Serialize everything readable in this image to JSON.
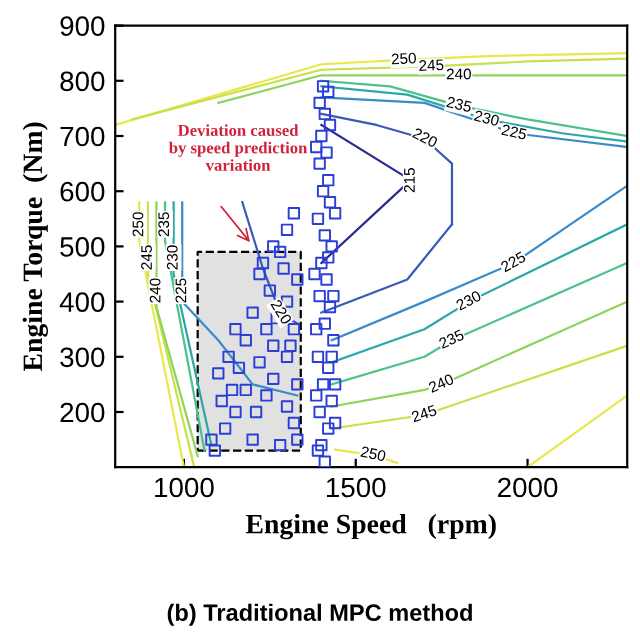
{
  "chart_data": {
    "type": "line",
    "title": "(b) Traditional MPC method",
    "xlabel": "Engine Speed   (rpm)",
    "ylabel": "Engine Torque  (Nm)",
    "xlim": [
      800,
      2290
    ],
    "ylim": [
      100,
      900
    ],
    "xticks": [
      1000,
      1500,
      2000
    ],
    "yticks": [
      200,
      300,
      400,
      500,
      600,
      700,
      800,
      900
    ],
    "grid": false,
    "legend": false,
    "marker": "none",
    "line_style": "solid",
    "series": [
      {
        "type": "area",
        "color": "#d9d9d9",
        "line_style": "dashed",
        "x": [
          1040,
          1340,
          1340,
          1040,
          1040
        ],
        "values": [
          130,
          130,
          490,
          490,
          130
        ]
      },
      {
        "name": "250",
        "color": "#e8e84a",
        "x": [
          800,
          1400,
          1640,
          1900,
          2290
        ],
        "values": [
          720,
          830,
          838,
          845,
          850
        ]
      },
      {
        "name": "250",
        "color": "#e8e84a",
        "x": [
          1440,
          1550,
          1620
        ],
        "values": [
          132,
          122,
          108
        ]
      },
      {
        "color": "#e8e84a",
        "x": [
          2000,
          2290
        ],
        "values": [
          100,
          230
        ]
      },
      {
        "name": "250",
        "color": "#e8e84a",
        "x": [
          870,
          870,
          870,
          870,
          1000
        ],
        "values": [
          580,
          570,
          540,
          510,
          100
        ]
      },
      {
        "name": "245",
        "color": "#c8e04a",
        "x": [
          850,
          1400,
          1720,
          2000,
          2290
        ],
        "values": [
          730,
          820,
          826,
          835,
          840
        ]
      },
      {
        "name": "245",
        "color": "#c8e04a",
        "x": [
          1430,
          1650,
          1700,
          2290
        ],
        "values": [
          170,
          190,
          195,
          320
        ]
      },
      {
        "name": "245",
        "color": "#c8e04a",
        "x": [
          895,
          895,
          895,
          895,
          1030
        ],
        "values": [
          580,
          510,
          480,
          450,
          100
        ]
      },
      {
        "name": "240",
        "color": "#8fd45a",
        "x": [
          1100,
          1400,
          1800,
          2100,
          2290
        ],
        "values": [
          760,
          810,
          810,
          810,
          810
        ]
      },
      {
        "name": "240",
        "color": "#8fd45a",
        "x": [
          1430,
          1700,
          1750,
          2290
        ],
        "values": [
          210,
          240,
          250,
          400
        ]
      },
      {
        "name": "240",
        "color": "#8fd45a",
        "x": [
          920,
          920,
          920,
          920,
          1040
        ],
        "values": [
          580,
          450,
          420,
          390,
          120
        ]
      },
      {
        "name": "235",
        "color": "#4cc28a",
        "x": [
          1400,
          1600,
          1800,
          2000,
          2290
        ],
        "values": [
          800,
          790,
          755,
          730,
          700
        ]
      },
      {
        "name": "235",
        "color": "#4cc28a",
        "x": [
          1430,
          1700,
          1780,
          2290
        ],
        "values": [
          250,
          300,
          330,
          470
        ]
      },
      {
        "name": "235",
        "color": "#4cc28a",
        "x": [
          945,
          945,
          945,
          945,
          1060
        ],
        "values": [
          580,
          570,
          540,
          510,
          130
        ]
      },
      {
        "name": "230",
        "color": "#2aa8a8",
        "x": [
          1400,
          1650,
          1880,
          2100,
          2290
        ],
        "values": [
          790,
          775,
          730,
          705,
          690
        ]
      },
      {
        "name": "230",
        "color": "#2aa8a8",
        "x": [
          1430,
          1700,
          1830,
          2290
        ],
        "values": [
          290,
          350,
          400,
          540
        ]
      },
      {
        "name": "230",
        "color": "#2aa8a8",
        "x": [
          970,
          970,
          970,
          970,
          1080
        ],
        "values": [
          580,
          510,
          480,
          450,
          140
        ]
      },
      {
        "name": "225",
        "color": "#3a8cc8",
        "x": [
          1400,
          1700,
          1960,
          2290
        ],
        "values": [
          770,
          760,
          705,
          680
        ]
      },
      {
        "name": "225",
        "color": "#3a8cc8",
        "x": [
          1430,
          1700,
          1960,
          2290
        ],
        "values": [
          330,
          400,
          470,
          610
        ]
      },
      {
        "name": "225",
        "color": "#3a8cc8",
        "x": [
          995,
          995,
          995,
          995
        ],
        "values": [
          580,
          450,
          420,
          400
        ]
      },
      {
        "color": "#3a8cc8",
        "x": [
          995,
          1100,
          1200,
          1330
        ],
        "values": [
          400,
          330,
          250,
          230
        ]
      },
      {
        "name": "220",
        "color": "#3a5ab8",
        "x": [
          1400,
          1560,
          1700,
          1780,
          1780
        ],
        "values": [
          740,
          720,
          695,
          650,
          540
        ]
      },
      {
        "color": "#3a5ab8",
        "x": [
          1780,
          1650,
          1400
        ],
        "values": [
          540,
          440,
          380
        ]
      },
      {
        "name": "220",
        "color": "#3a5ab8",
        "x": [
          1170,
          1230,
          1280,
          1330
        ],
        "values": [
          580,
          460,
          380,
          360
        ]
      },
      {
        "name": "215",
        "color": "#2a2a90",
        "x": [
          1400,
          1660,
          1400
        ],
        "values": [
          720,
          620,
          470
        ]
      },
      {
        "type": "scatter",
        "color": "#2b3fd6",
        "marker": "square",
        "x": [
          1410,
          1400,
          1420,
          1395,
          1430,
          1405,
          1420,
          1390,
          1435,
          1410,
          1425,
          1395,
          1415,
          1400,
          1430,
          1410,
          1390,
          1425,
          1405,
          1420,
          1395,
          1415,
          1400,
          1425,
          1410,
          1395,
          1420,
          1405,
          1385,
          1440,
          1380,
          1440,
          1385,
          1440,
          1385,
          1435,
          1390,
          1430,
          1420,
          1090,
          1080,
          1120,
          1150,
          1110,
          1180,
          1240,
          1300,
          1320,
          1280,
          1200,
          1160,
          1100,
          1130,
          1220,
          1260,
          1300,
          1330,
          1180,
          1240,
          1270,
          1200,
          1300,
          1320,
          1250,
          1220,
          1290,
          1280,
          1260,
          1230,
          1330,
          1310,
          1150,
          1210,
          1330,
          1140,
          1260,
          1300,
          1320
        ],
        "values": [
          110,
          140,
          170,
          200,
          220,
          250,
          280,
          300,
          330,
          360,
          390,
          410,
          440,
          470,
          500,
          520,
          550,
          580,
          600,
          620,
          650,
          670,
          700,
          720,
          740,
          760,
          780,
          790,
          350,
          250,
          450,
          560,
          230,
          180,
          680,
          410,
          130,
          300,
          480,
          130,
          150,
          170,
          200,
          220,
          240,
          230,
          210,
          180,
          140,
          150,
          280,
          270,
          300,
          290,
          320,
          300,
          250,
          330,
          350,
          370,
          380,
          400,
          350,
          420,
          450,
          460,
          490,
          500,
          470,
          440,
          320,
          350,
          200,
          150,
          240,
          260,
          530,
          560
        ]
      }
    ],
    "annotations": [
      "Deviation caused\nby speed prediction\nvariation"
    ]
  }
}
